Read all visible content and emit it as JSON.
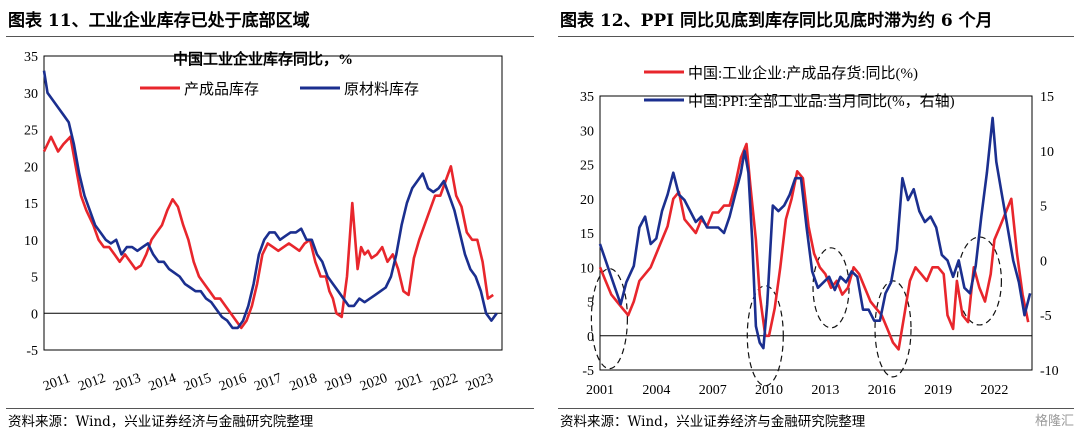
{
  "left": {
    "figure_title": "图表 11、工业企业库存已处于底部区域",
    "source": "资料来源：Wind，兴业证券经济与金融研究院整理"
  },
  "right": {
    "figure_title": "图表 12、PPI 同比见底到库存同比见底时滞为约 6 个月",
    "source": "资料来源：Wind，兴业证券经济与金融研究院整理",
    "watermark": "格隆汇"
  },
  "colors": {
    "red": "#e8262c",
    "blue": "#1b2f8f"
  },
  "chart_data": [
    {
      "type": "line",
      "title": "中国工业企业库存同比，%",
      "x_tick_labels": [
        "2011",
        "2012",
        "2013",
        "2014",
        "2015",
        "2016",
        "2017",
        "2018",
        "2019",
        "2020",
        "2021",
        "2022",
        "2023"
      ],
      "y_tick_labels": [
        "-5",
        "0",
        "5",
        "10",
        "15",
        "20",
        "25",
        "30",
        "35"
      ],
      "ylim": [
        -5,
        35
      ],
      "xlim": [
        2011.0,
        2024.0
      ],
      "legend_position": "top",
      "series": [
        {
          "name": "产成品库存",
          "color": "#e8262c",
          "x": [
            2011.0,
            2011.2,
            2011.4,
            2011.55,
            2011.75,
            2011.9,
            2012.05,
            2012.2,
            2012.4,
            2012.55,
            2012.7,
            2012.85,
            2013.0,
            2013.15,
            2013.3,
            2013.45,
            2013.6,
            2013.75,
            2013.9,
            2014.05,
            2014.2,
            2014.35,
            2014.5,
            2014.65,
            2014.8,
            2014.95,
            2015.1,
            2015.25,
            2015.4,
            2015.55,
            2015.7,
            2015.85,
            2016.0,
            2016.15,
            2016.3,
            2016.45,
            2016.6,
            2016.75,
            2016.9,
            2017.05,
            2017.2,
            2017.35,
            2017.5,
            2017.65,
            2017.8,
            2017.95,
            2018.1,
            2018.25,
            2018.4,
            2018.55,
            2018.7,
            2018.85,
            2019.0,
            2019.1,
            2019.2,
            2019.3,
            2019.45,
            2019.6,
            2019.75,
            2019.9,
            2020.0,
            2020.1,
            2020.2,
            2020.3,
            2020.45,
            2020.6,
            2020.75,
            2020.9,
            2021.05,
            2021.2,
            2021.35,
            2021.5,
            2021.65,
            2021.8,
            2021.95,
            2022.1,
            2022.25,
            2022.4,
            2022.55,
            2022.7,
            2022.85,
            2023.0,
            2023.15,
            2023.3,
            2023.45,
            2023.6,
            2023.75
          ],
          "values": [
            22,
            24,
            22,
            23,
            24,
            20,
            16,
            14,
            12,
            10,
            9,
            9,
            8,
            7,
            8,
            7,
            6,
            6.5,
            8,
            10,
            11,
            12,
            14,
            15.5,
            14.5,
            12,
            10,
            7,
            5,
            4,
            3,
            2,
            2,
            1,
            0,
            -1,
            -2,
            -1,
            1,
            4,
            8,
            9.5,
            9,
            8.5,
            9,
            9.5,
            9,
            8.5,
            9.5,
            10,
            7,
            5,
            5,
            3,
            2,
            0,
            -0.5,
            5,
            15,
            6,
            9,
            8,
            8.5,
            7.5,
            8,
            9,
            7,
            8,
            6,
            3,
            2.5,
            7.5,
            10,
            12,
            14,
            16,
            16,
            18,
            20,
            16,
            14.5,
            11,
            10,
            10,
            7,
            2,
            2.5
          ]
        },
        {
          "name": "原材料库存",
          "color": "#1b2f8f",
          "x": [
            2011.0,
            2011.1,
            2011.25,
            2011.4,
            2011.55,
            2011.7,
            2011.85,
            2012.0,
            2012.15,
            2012.3,
            2012.45,
            2012.6,
            2012.75,
            2012.9,
            2013.05,
            2013.2,
            2013.35,
            2013.5,
            2013.65,
            2013.8,
            2013.95,
            2014.1,
            2014.25,
            2014.4,
            2014.55,
            2014.7,
            2014.85,
            2015.0,
            2015.15,
            2015.3,
            2015.45,
            2015.6,
            2015.75,
            2015.9,
            2016.05,
            2016.2,
            2016.35,
            2016.5,
            2016.65,
            2016.8,
            2016.95,
            2017.1,
            2017.25,
            2017.4,
            2017.55,
            2017.7,
            2017.85,
            2018.0,
            2018.15,
            2018.3,
            2018.45,
            2018.6,
            2018.75,
            2018.9,
            2019.05,
            2019.2,
            2019.35,
            2019.5,
            2019.65,
            2019.8,
            2019.95,
            2020.1,
            2020.25,
            2020.4,
            2020.55,
            2020.7,
            2020.85,
            2021.0,
            2021.15,
            2021.3,
            2021.45,
            2021.6,
            2021.75,
            2021.9,
            2022.05,
            2022.2,
            2022.35,
            2022.5,
            2022.65,
            2022.8,
            2022.95,
            2023.1,
            2023.25,
            2023.4,
            2023.55,
            2023.7,
            2023.85
          ],
          "values": [
            33,
            30,
            29,
            28,
            27,
            26,
            23,
            19,
            16,
            14,
            12,
            11,
            10,
            9.5,
            10,
            8,
            9,
            9,
            8.5,
            9,
            9.5,
            8,
            7,
            7,
            6,
            5.5,
            5,
            4,
            3.5,
            3,
            3,
            2,
            1.5,
            0.5,
            -0.5,
            -1,
            -2,
            -2,
            -1,
            1,
            4,
            8,
            10,
            11,
            11,
            10,
            10.5,
            11,
            11,
            11.5,
            10,
            10,
            8,
            7,
            5,
            4,
            3,
            2,
            1,
            1,
            2,
            1.5,
            2,
            2.5,
            3,
            3.5,
            5,
            8,
            12,
            15,
            17,
            18,
            19,
            17,
            16.5,
            17,
            18,
            16,
            14,
            11,
            8,
            6,
            5,
            3,
            0,
            -1,
            0
          ]
        }
      ]
    },
    {
      "type": "line",
      "legend_position": "top",
      "x_tick_labels": [
        "2001",
        "2004",
        "2007",
        "2010",
        "2013",
        "2016",
        "2019",
        "2022"
      ],
      "y_tick_labels_left": [
        "-5",
        "0",
        "5",
        "10",
        "15",
        "20",
        "25",
        "30",
        "35"
      ],
      "y_tick_labels_right": [
        "-10",
        "-5",
        "0",
        "5",
        "10",
        "15"
      ],
      "ylim_left": [
        -5,
        35
      ],
      "ylim_right": [
        -10,
        15
      ],
      "xlim": [
        2001.0,
        2024.0
      ],
      "series": [
        {
          "name": "中国:工业企业:产成品存货:同比(%)",
          "color": "#e8262c",
          "axis": "left",
          "x": [
            2001.0,
            2001.3,
            2001.6,
            2001.9,
            2002.2,
            2002.5,
            2002.8,
            2003.1,
            2003.4,
            2003.7,
            2004.0,
            2004.3,
            2004.6,
            2004.9,
            2005.2,
            2005.5,
            2005.8,
            2006.1,
            2006.4,
            2006.7,
            2007.0,
            2007.3,
            2007.6,
            2007.9,
            2008.2,
            2008.5,
            2008.8,
            2009.0,
            2009.3,
            2009.5,
            2009.8,
            2010.0,
            2010.3,
            2010.6,
            2010.9,
            2011.2,
            2011.5,
            2011.8,
            2012.1,
            2012.4,
            2012.7,
            2013.0,
            2013.3,
            2013.6,
            2013.9,
            2014.2,
            2014.5,
            2014.8,
            2015.1,
            2015.4,
            2015.7,
            2016.0,
            2016.3,
            2016.6,
            2016.9,
            2017.2,
            2017.5,
            2017.8,
            2018.1,
            2018.4,
            2018.7,
            2019.0,
            2019.3,
            2019.5,
            2019.8,
            2020.0,
            2020.3,
            2020.6,
            2020.9,
            2021.2,
            2021.5,
            2021.8,
            2022.0,
            2022.3,
            2022.6,
            2022.9,
            2023.2,
            2023.5,
            2023.8
          ],
          "values": [
            10,
            8,
            6,
            5,
            4,
            3,
            5,
            8,
            9,
            10,
            12,
            14,
            16,
            20,
            21,
            17,
            16,
            15,
            17,
            16,
            18,
            18,
            19,
            19,
            22,
            26,
            28,
            22,
            14,
            6,
            0,
            0,
            4,
            10,
            17,
            20,
            24,
            23,
            16,
            12,
            10,
            9,
            7,
            8,
            6,
            7,
            10,
            9,
            7,
            5,
            4,
            3,
            1,
            -1,
            -2,
            3,
            8,
            10,
            9,
            8,
            10,
            10,
            9,
            3,
            1,
            8,
            3,
            2,
            10,
            7,
            5,
            9,
            14,
            16,
            18,
            20,
            12,
            6,
            2
          ]
        },
        {
          "name": "中国:PPI:全部工业品:当月同比(%，右轴)",
          "color": "#1b2f8f",
          "axis": "right",
          "x": [
            2001.0,
            2001.4,
            2001.8,
            2002.1,
            2002.4,
            2002.8,
            2003.1,
            2003.4,
            2003.7,
            2004.0,
            2004.3,
            2004.6,
            2004.9,
            2005.2,
            2005.5,
            2005.8,
            2006.1,
            2006.4,
            2006.7,
            2007.0,
            2007.3,
            2007.6,
            2007.9,
            2008.2,
            2008.5,
            2008.7,
            2008.9,
            2009.1,
            2009.3,
            2009.5,
            2009.7,
            2009.9,
            2010.2,
            2010.5,
            2010.8,
            2011.1,
            2011.4,
            2011.7,
            2012.0,
            2012.3,
            2012.6,
            2012.9,
            2013.2,
            2013.5,
            2013.8,
            2014.1,
            2014.4,
            2014.7,
            2015.0,
            2015.3,
            2015.6,
            2015.9,
            2016.2,
            2016.5,
            2016.8,
            2017.1,
            2017.4,
            2017.7,
            2018.0,
            2018.3,
            2018.6,
            2018.9,
            2019.2,
            2019.5,
            2019.8,
            2020.1,
            2020.4,
            2020.7,
            2021.0,
            2021.3,
            2021.6,
            2021.9,
            2022.1,
            2022.4,
            2022.7,
            2023.0,
            2023.3,
            2023.6,
            2023.9
          ],
          "values": [
            1.5,
            -0.5,
            -2.5,
            -4,
            -2,
            -0.5,
            3,
            4,
            1.5,
            2,
            4.5,
            6,
            8,
            6,
            5.5,
            4.5,
            3.5,
            4,
            3,
            3,
            3,
            2.5,
            4,
            6,
            8,
            10,
            8,
            2,
            -6,
            -7.5,
            -8,
            -4,
            5,
            4.5,
            5,
            6,
            7.5,
            7.5,
            3,
            -1,
            -2.5,
            -2,
            -1.5,
            -2.7,
            -1.5,
            -2,
            -1,
            -1.5,
            -4.5,
            -4.5,
            -5.5,
            -5.5,
            -3,
            -2,
            1,
            7.5,
            5.5,
            6.5,
            4.5,
            3.5,
            4,
            3,
            0.5,
            0,
            -1.5,
            0,
            -2.5,
            -3,
            -0.5,
            4,
            8,
            13,
            9,
            6,
            3,
            0,
            -2,
            -5,
            -3
          ]
        }
      ]
    }
  ]
}
